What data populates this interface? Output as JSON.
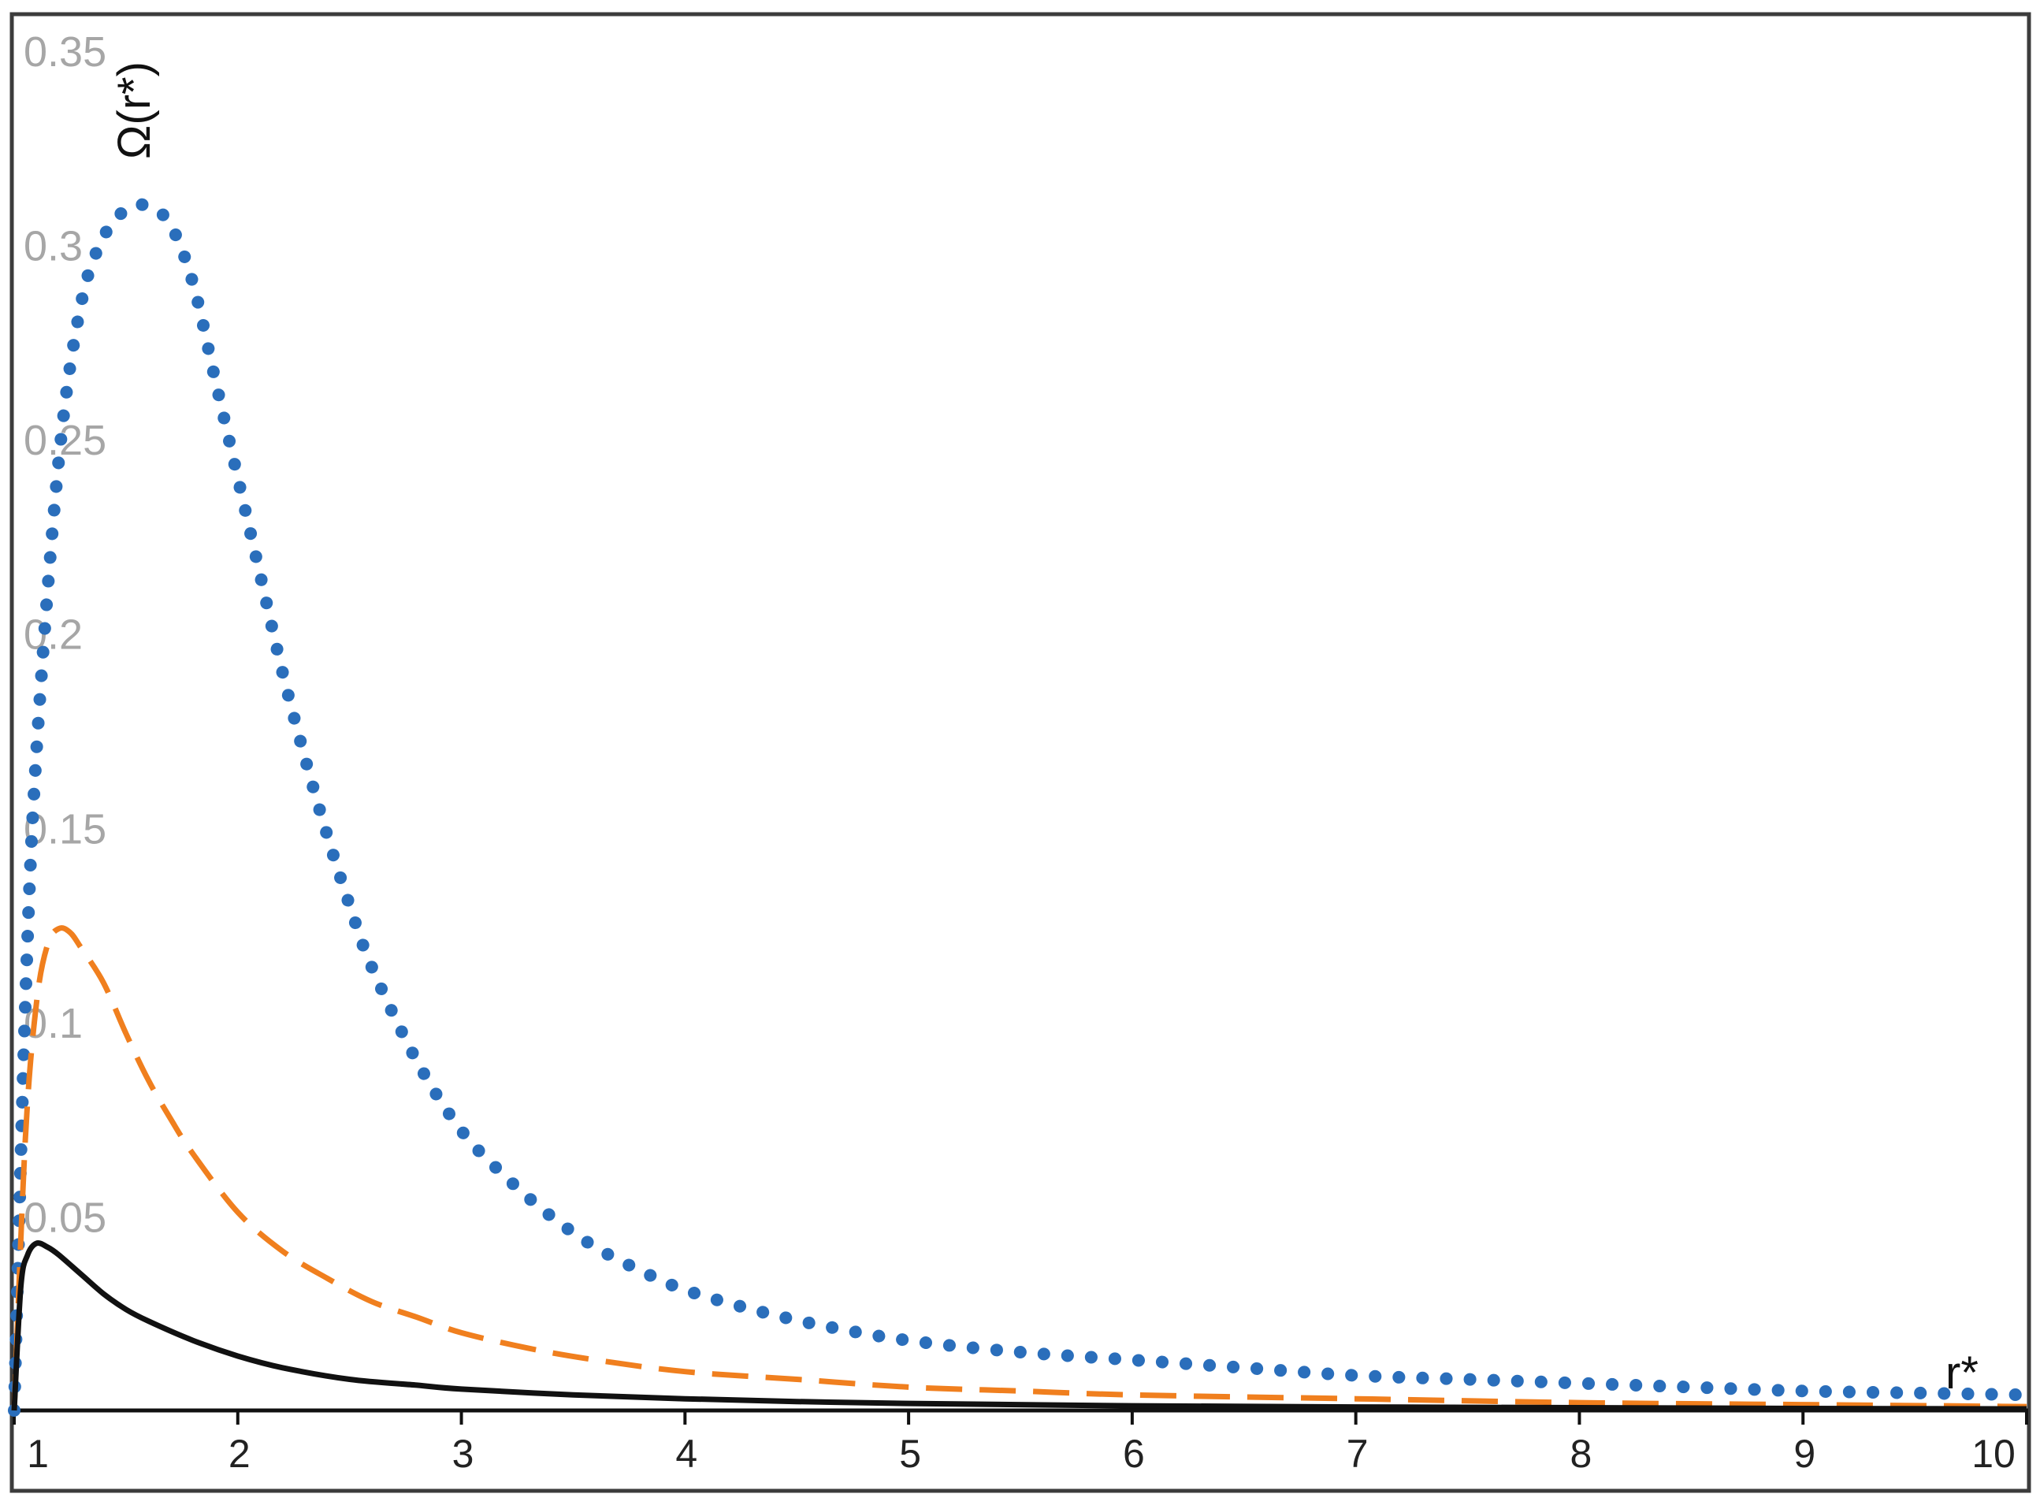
{
  "chart_data": {
    "type": "line",
    "title": "",
    "xlabel": "r*",
    "ylabel": "Ω(r*)",
    "xlim": [
      1,
      10
    ],
    "ylim": [
      0,
      0.35
    ],
    "xticks": [
      "1",
      "2",
      "3",
      "4",
      "5",
      "6",
      "7",
      "8",
      "9",
      "10"
    ],
    "yticks": [
      "0.05",
      "0.1",
      "0.15",
      "0.2",
      "0.25",
      "0.3",
      "0.35"
    ],
    "grid": false,
    "legend": "none",
    "series": [
      {
        "style": "dotted",
        "color": "#2a6ebb",
        "x": [
          1.0,
          1.05,
          1.1,
          1.2,
          1.3,
          1.4,
          1.5,
          1.6,
          1.7,
          1.8,
          1.9,
          2.0,
          2.1,
          2.2,
          2.3,
          2.4,
          2.5,
          2.6,
          2.8,
          3.0,
          3.2,
          3.4,
          3.6,
          3.8,
          4.0,
          4.3,
          4.6,
          5.0,
          5.5,
          6.0,
          6.5,
          7.0,
          7.5,
          8.0,
          8.5,
          9.0,
          9.5,
          10.0
        ],
        "y": [
          0.0,
          0.105,
          0.17,
          0.245,
          0.285,
          0.302,
          0.309,
          0.31,
          0.305,
          0.29,
          0.265,
          0.24,
          0.215,
          0.19,
          0.168,
          0.148,
          0.13,
          0.114,
          0.09,
          0.072,
          0.06,
          0.05,
          0.042,
          0.036,
          0.031,
          0.026,
          0.022,
          0.018,
          0.015,
          0.013,
          0.011,
          0.009,
          0.008,
          0.007,
          0.006,
          0.005,
          0.0045,
          0.004
        ]
      },
      {
        "style": "dashed",
        "color": "#f07f1e",
        "x": [
          1.0,
          1.05,
          1.1,
          1.15,
          1.2,
          1.25,
          1.3,
          1.4,
          1.5,
          1.6,
          1.7,
          1.8,
          2.0,
          2.2,
          2.4,
          2.6,
          2.8,
          3.0,
          3.3,
          3.6,
          4.0,
          4.5,
          5.0,
          5.5,
          6.0,
          7.0,
          8.0,
          9.0,
          10.0
        ],
        "y": [
          0.0,
          0.07,
          0.105,
          0.12,
          0.124,
          0.123,
          0.119,
          0.11,
          0.097,
          0.085,
          0.075,
          0.066,
          0.051,
          0.041,
          0.034,
          0.028,
          0.024,
          0.02,
          0.016,
          0.013,
          0.01,
          0.008,
          0.006,
          0.005,
          0.004,
          0.003,
          0.002,
          0.0015,
          0.001
        ]
      },
      {
        "style": "solid",
        "color": "#111111",
        "x": [
          1.0,
          1.03,
          1.06,
          1.1,
          1.15,
          1.2,
          1.3,
          1.4,
          1.5,
          1.6,
          1.8,
          2.0,
          2.2,
          2.5,
          2.8,
          3.0,
          3.5,
          4.0,
          4.5,
          5.0,
          6.0,
          7.0,
          8.0,
          9.0,
          10.0
        ],
        "y": [
          0.0,
          0.032,
          0.04,
          0.043,
          0.042,
          0.04,
          0.035,
          0.03,
          0.026,
          0.023,
          0.018,
          0.014,
          0.011,
          0.008,
          0.0065,
          0.0055,
          0.004,
          0.003,
          0.0023,
          0.0018,
          0.0012,
          0.0009,
          0.0007,
          0.0005,
          0.0004
        ]
      }
    ]
  }
}
